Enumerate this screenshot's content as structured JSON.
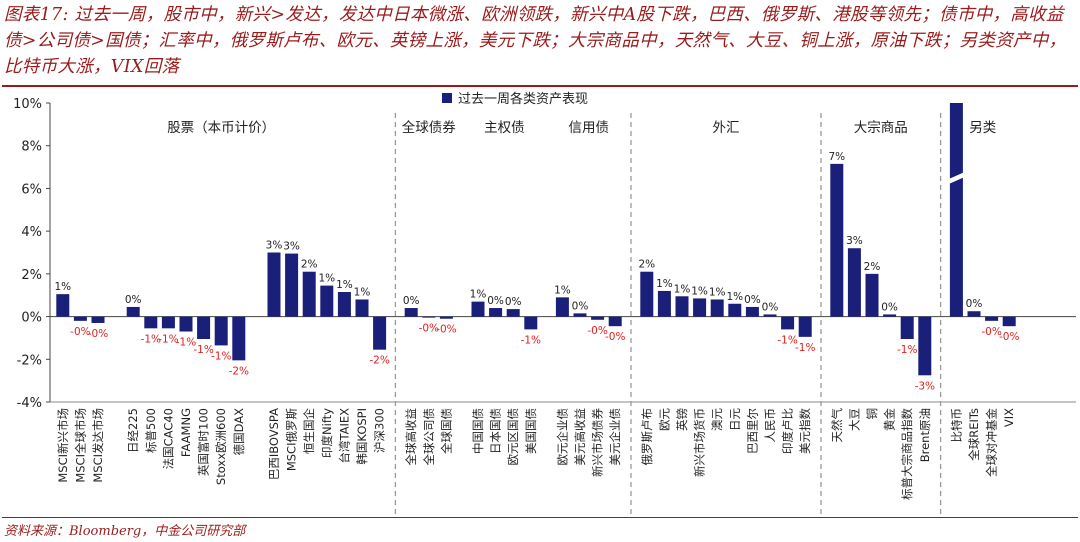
{
  "title": "图表17: 过去一周，股市中，新兴>发达，发达中日本微涨、欧洲领跌，新兴中A股下跌，巴西、俄罗斯、港股等领先；债市中，高收益债>公司债>国债；汇率中，俄罗斯卢布、欧元、英镑上涨，美元下跌；大宗商品中，天然气、大豆、铜上涨，原油下跌；另类资产中，比特币大涨，VIX回落",
  "source": "资料来源：Bloomberg，中金公司研究部",
  "chart_data": {
    "type": "bar",
    "legend": "过去一周各类资产表现",
    "legend_position": "top-center",
    "ylim": [
      -4,
      10
    ],
    "yticks": [
      "-4%",
      "-2%",
      "0%",
      "2%",
      "4%",
      "6%",
      "8%",
      "10%"
    ],
    "bar_color": "#1a1f7a",
    "pos_label_color": "#222222",
    "neg_label_color": "#e02020",
    "groups": [
      {
        "label": "股票（本币计价）",
        "bars": [
          {
            "name": "MSCI新兴市场",
            "value": 1.05,
            "label": "1%"
          },
          {
            "name": "MSCI全球市场",
            "value": -0.2,
            "label": "-0%"
          },
          {
            "name": "MSCI发达市场",
            "value": -0.3,
            "label": "-0%"
          },
          {
            "name": "",
            "value": null,
            "label": ""
          },
          {
            "name": "日经225",
            "value": 0.45,
            "label": "0%"
          },
          {
            "name": "标普500",
            "value": -0.55,
            "label": "-1%"
          },
          {
            "name": "法国CAC40",
            "value": -0.55,
            "label": "-1%"
          },
          {
            "name": "FAAMNG",
            "value": -0.7,
            "label": "-1%"
          },
          {
            "name": "英国富时100",
            "value": -1.05,
            "label": "-1%"
          },
          {
            "name": "Stoxx欧洲600",
            "value": -1.35,
            "label": "-1%"
          },
          {
            "name": "德国DAX",
            "value": -2.05,
            "label": "-2%"
          },
          {
            "name": "",
            "value": null,
            "label": ""
          },
          {
            "name": "巴西IBOVSPA",
            "value": 3.0,
            "label": "3%"
          },
          {
            "name": "MSCI俄罗斯",
            "value": 2.95,
            "label": "3%"
          },
          {
            "name": "恒生国企",
            "value": 2.1,
            "label": "2%"
          },
          {
            "name": "印度Nifty",
            "value": 1.45,
            "label": "1%"
          },
          {
            "name": "台湾TAIEX",
            "value": 1.15,
            "label": "1%"
          },
          {
            "name": "韩国KOSPI",
            "value": 0.8,
            "label": "1%"
          },
          {
            "name": "沪深300",
            "value": -1.55,
            "label": "-2%"
          }
        ]
      },
      {
        "label": "全球债券",
        "bars": [
          {
            "name": "全球高收益",
            "value": 0.4,
            "label": "0%"
          },
          {
            "name": "全球公司债",
            "value": -0.05,
            "label": "-0%"
          },
          {
            "name": "全球国债",
            "value": -0.1,
            "label": "-0%"
          }
        ]
      },
      {
        "label": "主权债",
        "bars": [
          {
            "name": "中国国债",
            "value": 0.7,
            "label": "1%"
          },
          {
            "name": "日本国债",
            "value": 0.4,
            "label": "0%"
          },
          {
            "name": "欧元区国债",
            "value": 0.35,
            "label": "0%"
          },
          {
            "name": "美国国债",
            "value": -0.6,
            "label": "-1%"
          }
        ]
      },
      {
        "label": "信用债",
        "bars": [
          {
            "name": "欧元企业债",
            "value": 0.9,
            "label": "1%"
          },
          {
            "name": "美元高收益",
            "value": 0.15,
            "label": "0%"
          },
          {
            "name": "新兴市场债券",
            "value": -0.15,
            "label": "-0%"
          },
          {
            "name": "美元企业债",
            "value": -0.45,
            "label": "-0%"
          }
        ]
      },
      {
        "label": "外汇",
        "bars": [
          {
            "name": "俄罗斯卢布",
            "value": 2.1,
            "label": "2%"
          },
          {
            "name": "欧元",
            "value": 1.2,
            "label": "1%"
          },
          {
            "name": "英镑",
            "value": 0.95,
            "label": "1%"
          },
          {
            "name": "新兴市场货币",
            "value": 0.85,
            "label": "1%"
          },
          {
            "name": "澳元",
            "value": 0.8,
            "label": "1%"
          },
          {
            "name": "日元",
            "value": 0.6,
            "label": "1%"
          },
          {
            "name": "巴西里尔",
            "value": 0.45,
            "label": "0%"
          },
          {
            "name": "人民币",
            "value": 0.1,
            "label": "0%"
          },
          {
            "name": "印度卢比",
            "value": -0.6,
            "label": "-1%"
          },
          {
            "name": "美元指数",
            "value": -0.95,
            "label": "-1%"
          }
        ]
      },
      {
        "label": "大宗商品",
        "bars": [
          {
            "name": "天然气",
            "value": 7.15,
            "label": "7%"
          },
          {
            "name": "大豆",
            "value": 3.2,
            "label": "3%"
          },
          {
            "name": "铜",
            "value": 2.0,
            "label": "2%"
          },
          {
            "name": "黄金",
            "value": 0.1,
            "label": "0%"
          },
          {
            "name": "标普大宗商品指数",
            "value": -1.05,
            "label": "-1%"
          },
          {
            "name": "Brent原油",
            "value": -2.75,
            "label": "-3%"
          }
        ]
      },
      {
        "label": "另类",
        "bars": [
          {
            "name": "比特币",
            "value": 10.0,
            "label": "",
            "truncated": true
          },
          {
            "name": "全球REITs",
            "value": 0.25,
            "label": "0%"
          },
          {
            "name": "全球对冲基金",
            "value": -0.2,
            "label": "-0%"
          },
          {
            "name": "VIX",
            "value": -0.45,
            "label": "-0%"
          }
        ]
      }
    ]
  }
}
